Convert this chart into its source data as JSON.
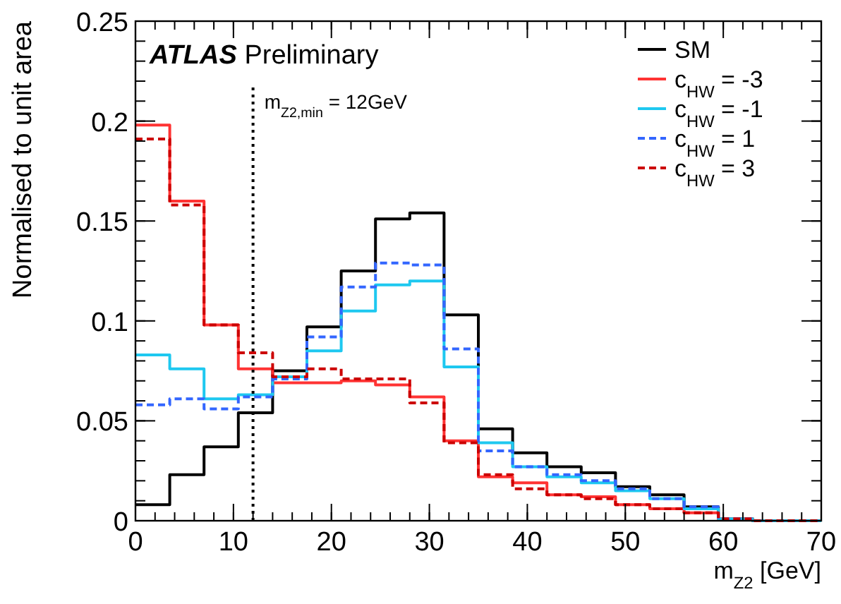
{
  "chart_data": {
    "type": "histogram",
    "xlabel": "m$_{Z2}$ [GeV]",
    "ylabel": "Normalised to unit area",
    "annotations": [
      "ATLAS Preliminary"
    ],
    "bins": [
      0,
      3.5,
      7,
      10.5,
      14,
      17.5,
      21,
      24.5,
      28,
      31.5,
      35,
      38.5,
      42,
      45.5,
      49,
      52.5,
      56,
      59.5,
      63,
      66.5,
      70
    ],
    "series": [
      {
        "name": "SM",
        "color": "#000000",
        "line_style": "solid",
        "values": [
          0.008,
          0.023,
          0.037,
          0.054,
          0.075,
          0.097,
          0.125,
          0.151,
          0.154,
          0.103,
          0.046,
          0.034,
          0.027,
          0.024,
          0.017,
          0.013,
          0.007,
          0.001,
          0,
          0
        ]
      },
      {
        "name": "c$_{HW}$ = -3",
        "color": "#ff3333",
        "line_style": "solid",
        "values": [
          0.198,
          0.16,
          0.098,
          0.076,
          0.069,
          0.069,
          0.07,
          0.068,
          0.062,
          0.04,
          0.022,
          0.019,
          0.013,
          0.012,
          0.008,
          0.006,
          0.004,
          0.001,
          0,
          0
        ]
      },
      {
        "name": "c$_{HW}$ = -1",
        "color": "#1ec8f0",
        "line_style": "solid",
        "values": [
          0.083,
          0.076,
          0.061,
          0.063,
          0.072,
          0.085,
          0.105,
          0.118,
          0.12,
          0.077,
          0.039,
          0.027,
          0.022,
          0.019,
          0.015,
          0.011,
          0.006,
          0.001,
          0,
          0
        ]
      },
      {
        "name": "c$_{HW}$ = 1",
        "color": "#3366ff",
        "line_style": "dashed",
        "values": [
          0.058,
          0.061,
          0.056,
          0.062,
          0.071,
          0.092,
          0.117,
          0.129,
          0.128,
          0.086,
          0.035,
          0.027,
          0.023,
          0.02,
          0.016,
          0.011,
          0.007,
          0.001,
          0,
          0
        ]
      },
      {
        "name": "c$_{HW}$ = 3",
        "color": "#cc0000",
        "line_style": "dashed",
        "values": [
          0.191,
          0.158,
          0.098,
          0.084,
          0.072,
          0.076,
          0.071,
          0.071,
          0.059,
          0.039,
          0.023,
          0.016,
          0.013,
          0.011,
          0.008,
          0.006,
          0.004,
          0.001,
          0,
          0
        ]
      }
    ],
    "xlim": [
      0,
      70
    ],
    "xticks": [
      0,
      10,
      20,
      30,
      40,
      50,
      60,
      70
    ],
    "ylim": [
      0,
      0.25
    ],
    "yticks": [
      0,
      0.05,
      0.1,
      0.15,
      0.2,
      0.25
    ],
    "ref_lines": [
      {
        "axis": "x",
        "value": 12,
        "label": "m$_{Z2,min}$ = 12GeV",
        "color": "#000000",
        "line_style": "dotted"
      }
    ],
    "legend": "top right",
    "grid": false
  }
}
